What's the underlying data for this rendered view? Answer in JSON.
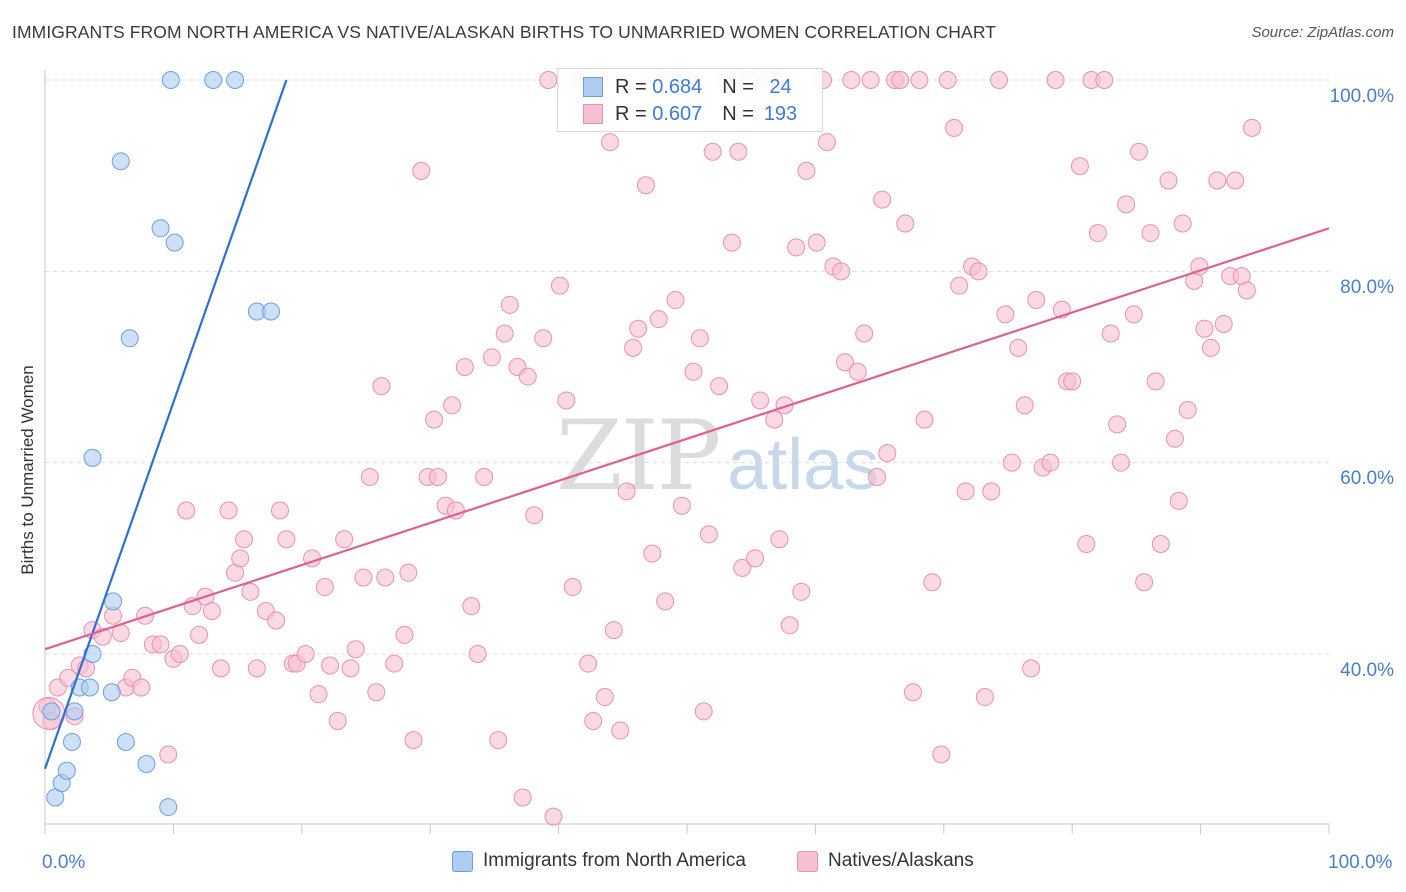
{
  "header": {
    "title": "IMMIGRANTS FROM NORTH AMERICA VS NATIVE/ALASKAN BIRTHS TO UNMARRIED WOMEN CORRELATION CHART",
    "source": "Source: ZipAtlas.com"
  },
  "watermark": {
    "zip": "ZIP",
    "atlas": "atlas"
  },
  "stats": {
    "r_label": "R =",
    "n_label": "N =",
    "blue": {
      "r": "0.684",
      "n": "24"
    },
    "pink": {
      "r": "0.607",
      "n": "193"
    }
  },
  "colors": {
    "blue_fill": "#aecbf0",
    "blue_stroke": "#6e9ee0",
    "blue_line": "#2f6fd0",
    "pink_fill": "#f6c0d2",
    "pink_stroke": "#e891b0",
    "pink_line": "#e0608e",
    "tick_text": "#4a7fc9"
  },
  "chart_data": {
    "type": "scatter",
    "title": "IMMIGRANTS FROM NORTH AMERICA VS NATIVE/ALASKAN BIRTHS TO UNMARRIED WOMEN CORRELATION CHART",
    "xlabel": "",
    "ylabel": "Births to Unmarried Women",
    "xlim": [
      0,
      100
    ],
    "ylim": [
      22,
      102
    ],
    "x_tick_labels": [
      "0.0%",
      "100.0%"
    ],
    "y_ticks": [
      40,
      60,
      80,
      100
    ],
    "y_tick_labels": [
      "40.0%",
      "60.0%",
      "80.0%",
      "100.0%"
    ],
    "grid": true,
    "legend_position": "bottom",
    "series": [
      {
        "name": "Immigrants from North America",
        "r": 0.684,
        "n": 24,
        "points": [
          [
            0.5,
            34.0
          ],
          [
            0.8,
            25.0
          ],
          [
            1.3,
            26.5
          ],
          [
            1.7,
            27.8
          ],
          [
            2.3,
            34.0
          ],
          [
            2.7,
            36.5
          ],
          [
            3.5,
            36.5
          ],
          [
            2.1,
            30.8
          ],
          [
            3.7,
            40.0
          ],
          [
            5.2,
            36.0
          ],
          [
            5.3,
            45.5
          ],
          [
            6.3,
            30.8
          ],
          [
            7.9,
            28.5
          ],
          [
            9.6,
            24.0
          ],
          [
            3.7,
            60.5
          ],
          [
            6.6,
            73.0
          ],
          [
            5.9,
            91.5
          ],
          [
            9.0,
            84.5
          ],
          [
            10.1,
            83.0
          ],
          [
            16.5,
            75.8
          ],
          [
            17.6,
            75.8
          ],
          [
            9.8,
            100.0
          ],
          [
            13.1,
            100.0
          ],
          [
            14.8,
            100.0
          ]
        ],
        "trend": [
          [
            0.0,
            28.0
          ],
          [
            18.8,
            100.0
          ]
        ]
      },
      {
        "name": "Natives/Alaskans",
        "r": 0.607,
        "n": 193,
        "points": [
          [
            0.2,
            34.5
          ],
          [
            0.5,
            33.0
          ],
          [
            1.0,
            36.5
          ],
          [
            1.8,
            37.5
          ],
          [
            2.3,
            33.5
          ],
          [
            2.7,
            38.8
          ],
          [
            3.2,
            38.5
          ],
          [
            3.7,
            42.5
          ],
          [
            4.5,
            41.8
          ],
          [
            5.3,
            44.0
          ],
          [
            5.9,
            42.2
          ],
          [
            6.3,
            36.5
          ],
          [
            6.8,
            37.5
          ],
          [
            7.5,
            36.5
          ],
          [
            7.8,
            44.0
          ],
          [
            8.4,
            41.0
          ],
          [
            9.0,
            41.0
          ],
          [
            9.6,
            29.5
          ],
          [
            10.0,
            39.5
          ],
          [
            10.5,
            40.0
          ],
          [
            11.0,
            55.0
          ],
          [
            11.5,
            45.0
          ],
          [
            12.0,
            42.0
          ],
          [
            12.5,
            46.0
          ],
          [
            13.0,
            44.5
          ],
          [
            13.7,
            38.5
          ],
          [
            14.3,
            55.0
          ],
          [
            14.8,
            48.5
          ],
          [
            15.2,
            50.0
          ],
          [
            15.5,
            52.0
          ],
          [
            16.0,
            46.5
          ],
          [
            16.5,
            38.5
          ],
          [
            17.2,
            44.5
          ],
          [
            18.0,
            43.5
          ],
          [
            18.3,
            55.0
          ],
          [
            18.8,
            52.0
          ],
          [
            19.3,
            39.0
          ],
          [
            19.6,
            39.0
          ],
          [
            20.3,
            40.0
          ],
          [
            20.8,
            50.0
          ],
          [
            21.3,
            35.8
          ],
          [
            21.8,
            47.0
          ],
          [
            22.2,
            38.8
          ],
          [
            22.8,
            33.0
          ],
          [
            23.3,
            52.0
          ],
          [
            23.8,
            38.5
          ],
          [
            24.2,
            40.5
          ],
          [
            24.8,
            48.0
          ],
          [
            25.3,
            58.5
          ],
          [
            25.8,
            36.0
          ],
          [
            26.2,
            68.0
          ],
          [
            26.5,
            48.0
          ],
          [
            27.2,
            39.0
          ],
          [
            28.0,
            42.0
          ],
          [
            28.3,
            48.5
          ],
          [
            28.7,
            31.0
          ],
          [
            29.3,
            90.5
          ],
          [
            29.8,
            58.5
          ],
          [
            30.3,
            64.5
          ],
          [
            30.6,
            58.5
          ],
          [
            31.2,
            55.5
          ],
          [
            31.7,
            66.0
          ],
          [
            32.0,
            55.0
          ],
          [
            32.7,
            70.0
          ],
          [
            33.2,
            45.0
          ],
          [
            33.7,
            40.0
          ],
          [
            34.2,
            58.5
          ],
          [
            34.8,
            71.0
          ],
          [
            35.3,
            31.0
          ],
          [
            35.8,
            73.5
          ],
          [
            36.2,
            76.5
          ],
          [
            36.8,
            70.0
          ],
          [
            37.2,
            25.0
          ],
          [
            37.6,
            69.0
          ],
          [
            38.1,
            54.5
          ],
          [
            38.8,
            73.0
          ],
          [
            39.2,
            100.0
          ],
          [
            39.6,
            23.0
          ],
          [
            40.1,
            78.5
          ],
          [
            40.6,
            66.5
          ],
          [
            41.1,
            47.0
          ],
          [
            41.7,
            100.0
          ],
          [
            42.3,
            39.0
          ],
          [
            42.7,
            33.0
          ],
          [
            43.2,
            100.0
          ],
          [
            43.6,
            35.5
          ],
          [
            44.0,
            93.5
          ],
          [
            44.3,
            42.5
          ],
          [
            44.8,
            32.0
          ],
          [
            45.3,
            57.0
          ],
          [
            45.8,
            72.0
          ],
          [
            46.2,
            74.0
          ],
          [
            46.8,
            89.0
          ],
          [
            47.3,
            50.5
          ],
          [
            47.8,
            75.0
          ],
          [
            48.3,
            45.5
          ],
          [
            48.7,
            100.0
          ],
          [
            49.1,
            77.0
          ],
          [
            49.6,
            55.5
          ],
          [
            50.0,
            100.0
          ],
          [
            50.5,
            69.5
          ],
          [
            51.0,
            73.0
          ],
          [
            51.3,
            34.0
          ],
          [
            51.7,
            52.5
          ],
          [
            52.0,
            92.5
          ],
          [
            52.5,
            68.0
          ],
          [
            53.1,
            100.0
          ],
          [
            53.5,
            83.0
          ],
          [
            54.0,
            92.5
          ],
          [
            54.3,
            49.0
          ],
          [
            54.8,
            100.0
          ],
          [
            55.3,
            50.0
          ],
          [
            55.7,
            66.5
          ],
          [
            56.3,
            100.0
          ],
          [
            56.8,
            64.5
          ],
          [
            57.2,
            52.0
          ],
          [
            57.6,
            66.0
          ],
          [
            58.0,
            43.0
          ],
          [
            58.5,
            82.5
          ],
          [
            58.9,
            46.5
          ],
          [
            59.3,
            90.5
          ],
          [
            60.1,
            83.0
          ],
          [
            60.6,
            100.0
          ],
          [
            60.9,
            93.5
          ],
          [
            61.4,
            80.5
          ],
          [
            62.0,
            80.0
          ],
          [
            62.3,
            70.5
          ],
          [
            62.8,
            100.0
          ],
          [
            63.3,
            69.5
          ],
          [
            63.8,
            73.5
          ],
          [
            64.3,
            100.0
          ],
          [
            64.8,
            58.5
          ],
          [
            65.2,
            87.5
          ],
          [
            65.6,
            61.0
          ],
          [
            66.2,
            100.0
          ],
          [
            66.6,
            100.0
          ],
          [
            67.0,
            85.0
          ],
          [
            67.6,
            36.0
          ],
          [
            68.1,
            100.0
          ],
          [
            68.5,
            64.5
          ],
          [
            69.1,
            47.5
          ],
          [
            69.8,
            29.5
          ],
          [
            70.3,
            100.0
          ],
          [
            70.8,
            95.0
          ],
          [
            71.2,
            78.5
          ],
          [
            71.7,
            57.0
          ],
          [
            72.2,
            80.5
          ],
          [
            72.7,
            80.0
          ],
          [
            73.2,
            35.5
          ],
          [
            73.7,
            57.0
          ],
          [
            74.3,
            100.0
          ],
          [
            74.8,
            75.5
          ],
          [
            75.3,
            60.0
          ],
          [
            75.8,
            72.0
          ],
          [
            76.3,
            66.0
          ],
          [
            76.8,
            38.5
          ],
          [
            77.2,
            77.0
          ],
          [
            77.7,
            59.5
          ],
          [
            78.3,
            60.0
          ],
          [
            78.7,
            100.0
          ],
          [
            79.2,
            76.0
          ],
          [
            79.6,
            68.5
          ],
          [
            80.0,
            68.5
          ],
          [
            80.6,
            91.0
          ],
          [
            81.1,
            51.5
          ],
          [
            81.5,
            100.0
          ],
          [
            82.0,
            84.0
          ],
          [
            82.5,
            100.0
          ],
          [
            83.0,
            73.5
          ],
          [
            83.5,
            64.0
          ],
          [
            83.8,
            60.0
          ],
          [
            84.2,
            87.0
          ],
          [
            84.8,
            75.5
          ],
          [
            85.2,
            92.5
          ],
          [
            85.6,
            47.5
          ],
          [
            86.1,
            84.0
          ],
          [
            86.5,
            68.5
          ],
          [
            86.9,
            51.5
          ],
          [
            87.5,
            89.5
          ],
          [
            88.0,
            62.5
          ],
          [
            88.3,
            56.0
          ],
          [
            88.6,
            85.0
          ],
          [
            89.0,
            65.5
          ],
          [
            89.5,
            79.0
          ],
          [
            89.9,
            80.5
          ],
          [
            90.3,
            74.0
          ],
          [
            90.8,
            72.0
          ],
          [
            91.3,
            89.5
          ],
          [
            91.8,
            74.5
          ],
          [
            92.3,
            79.5
          ],
          [
            92.7,
            89.5
          ],
          [
            93.2,
            79.5
          ],
          [
            93.6,
            78.0
          ],
          [
            94.0,
            95.0
          ]
        ],
        "trend": [
          [
            0.0,
            40.5
          ],
          [
            100.0,
            84.5
          ]
        ]
      }
    ]
  },
  "legend": {
    "items": [
      {
        "label": "Immigrants from North America"
      },
      {
        "label": "Natives/Alaskans"
      }
    ]
  }
}
